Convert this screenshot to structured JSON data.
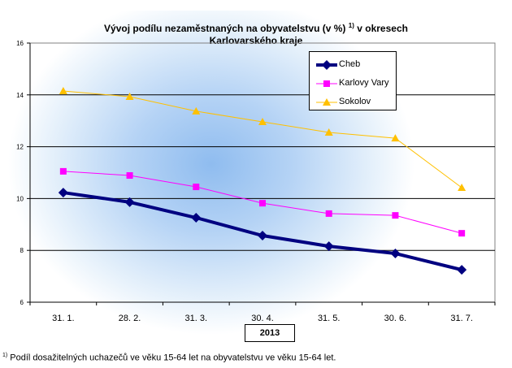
{
  "chart_data": {
    "type": "line",
    "title": "Vývoj podílu nezaměstnaných na obyvatelstvu (v %)",
    "title_sup": "1)",
    "title_rest": "v okresech",
    "title_line2": "Karlovarského kraje",
    "categories": [
      "31. 1.",
      "28. 2.",
      "31. 3.",
      "30. 4.",
      "31. 5.",
      "30. 6.",
      "31. 7."
    ],
    "xlabel": "2013",
    "ylim": [
      6,
      16
    ],
    "yticks": [
      "6",
      "8",
      "10",
      "12",
      "14",
      "16"
    ],
    "grid": true,
    "legend_placement": "top-right",
    "series": [
      {
        "name": "Cheb",
        "color": "#000080",
        "marker": "diamond",
        "values": [
          10.23,
          9.86,
          9.26,
          8.57,
          8.16,
          7.88,
          7.25
        ]
      },
      {
        "name": "Karlovy Vary",
        "color": "#ff00ff",
        "marker": "square",
        "values": [
          11.05,
          10.89,
          10.45,
          9.82,
          9.42,
          9.35,
          8.66
        ]
      },
      {
        "name": "Sokolov",
        "color": "#ffc000",
        "marker": "triangle",
        "values": [
          14.15,
          13.93,
          13.37,
          12.96,
          12.55,
          12.33,
          10.42
        ]
      }
    ]
  },
  "footnote": {
    "mark": "1)",
    "text": "Podíl dosažitelných uchazečů ve věku 15-64 let na obyvatelstvu ve věku 15-64 let."
  }
}
